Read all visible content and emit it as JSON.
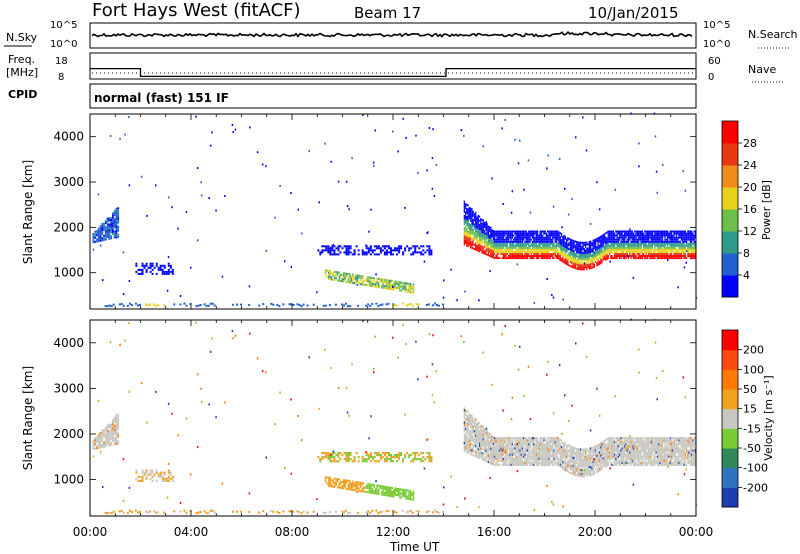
{
  "header": {
    "site": "Fort Hays West (fitACF)",
    "beam": "Beam 17",
    "date": "10/Jan/2015"
  },
  "noise_panel": {
    "left_label": "N.Sky",
    "left_ticks": [
      "10^5",
      "10^0"
    ],
    "right_label": "N.Search",
    "right_ticks": [
      "10^5",
      "10^0"
    ]
  },
  "freq_panel": {
    "left_label_line1": "Freq.",
    "left_label_line2": "[MHz]",
    "left_ticks": [
      "18",
      "8"
    ],
    "right_label": "Nave",
    "right_ticks": [
      "60",
      "0"
    ],
    "step_profile": [
      {
        "t": 0,
        "f": 12
      },
      {
        "t": 2.0,
        "f": 12
      },
      {
        "t": 2.0,
        "f": 9
      },
      {
        "t": 14.1,
        "f": 9
      },
      {
        "t": 14.1,
        "f": 12
      },
      {
        "t": 24,
        "f": 12
      }
    ],
    "ylim": [
      8,
      18
    ]
  },
  "cpid": {
    "label": "CPID",
    "value": "normal (fast) 151 IF"
  },
  "chart_data": [
    {
      "type": "heatmap",
      "title": "",
      "xlabel": "",
      "ylabel": "Slant Range [km]",
      "xlim_hours": [
        0,
        24
      ],
      "ylim": [
        200,
        4500
      ],
      "yticks": [
        1000,
        2000,
        3000,
        4000
      ],
      "colorbar": {
        "label": "Power [dB]",
        "ticks": [
          "28",
          "24",
          "20",
          "16",
          "12",
          "8",
          "4"
        ],
        "colors": [
          "#0000ff",
          "#2060d0",
          "#2f9a8a",
          "#6dbf4a",
          "#e6d21a",
          "#f08a1a",
          "#e83a12",
          "#ff0000"
        ]
      },
      "echo_regions": [
        {
          "t0": 0.1,
          "t1": 1.1,
          "r0": 1650,
          "r1": 2450,
          "level": "mid"
        },
        {
          "t0": 9.3,
          "t1": 12.8,
          "r0": 700,
          "r1": 1050,
          "level": "high"
        },
        {
          "t0": 14.8,
          "t1": 24,
          "r0": 1200,
          "r1": 2300,
          "level": "band"
        },
        {
          "t0": 2.0,
          "t1": 13.5,
          "r0": 220,
          "r1": 330,
          "level": "ground"
        }
      ]
    },
    {
      "type": "heatmap",
      "title": "",
      "xlabel": "Time UT",
      "ylabel": "Slant Range [km]",
      "xlim_hours": [
        0,
        24
      ],
      "xticks": [
        "00:00",
        "04:00",
        "08:00",
        "12:00",
        "16:00",
        "20:00",
        "00:00"
      ],
      "ylim": [
        200,
        4500
      ],
      "yticks": [
        1000,
        2000,
        3000,
        4000
      ],
      "colorbar": {
        "label": "Velocity [m s⁻¹]",
        "ticks": [
          "200",
          "100",
          "50",
          "15",
          "-15",
          "-50",
          "-100",
          "-200"
        ],
        "colors": [
          "#1c3fb0",
          "#2c73c0",
          "#2e8a5a",
          "#77cc33",
          "#c8c8c0",
          "#f2a020",
          "#ff7a00",
          "#ff4a10",
          "#ff0000"
        ]
      }
    }
  ]
}
